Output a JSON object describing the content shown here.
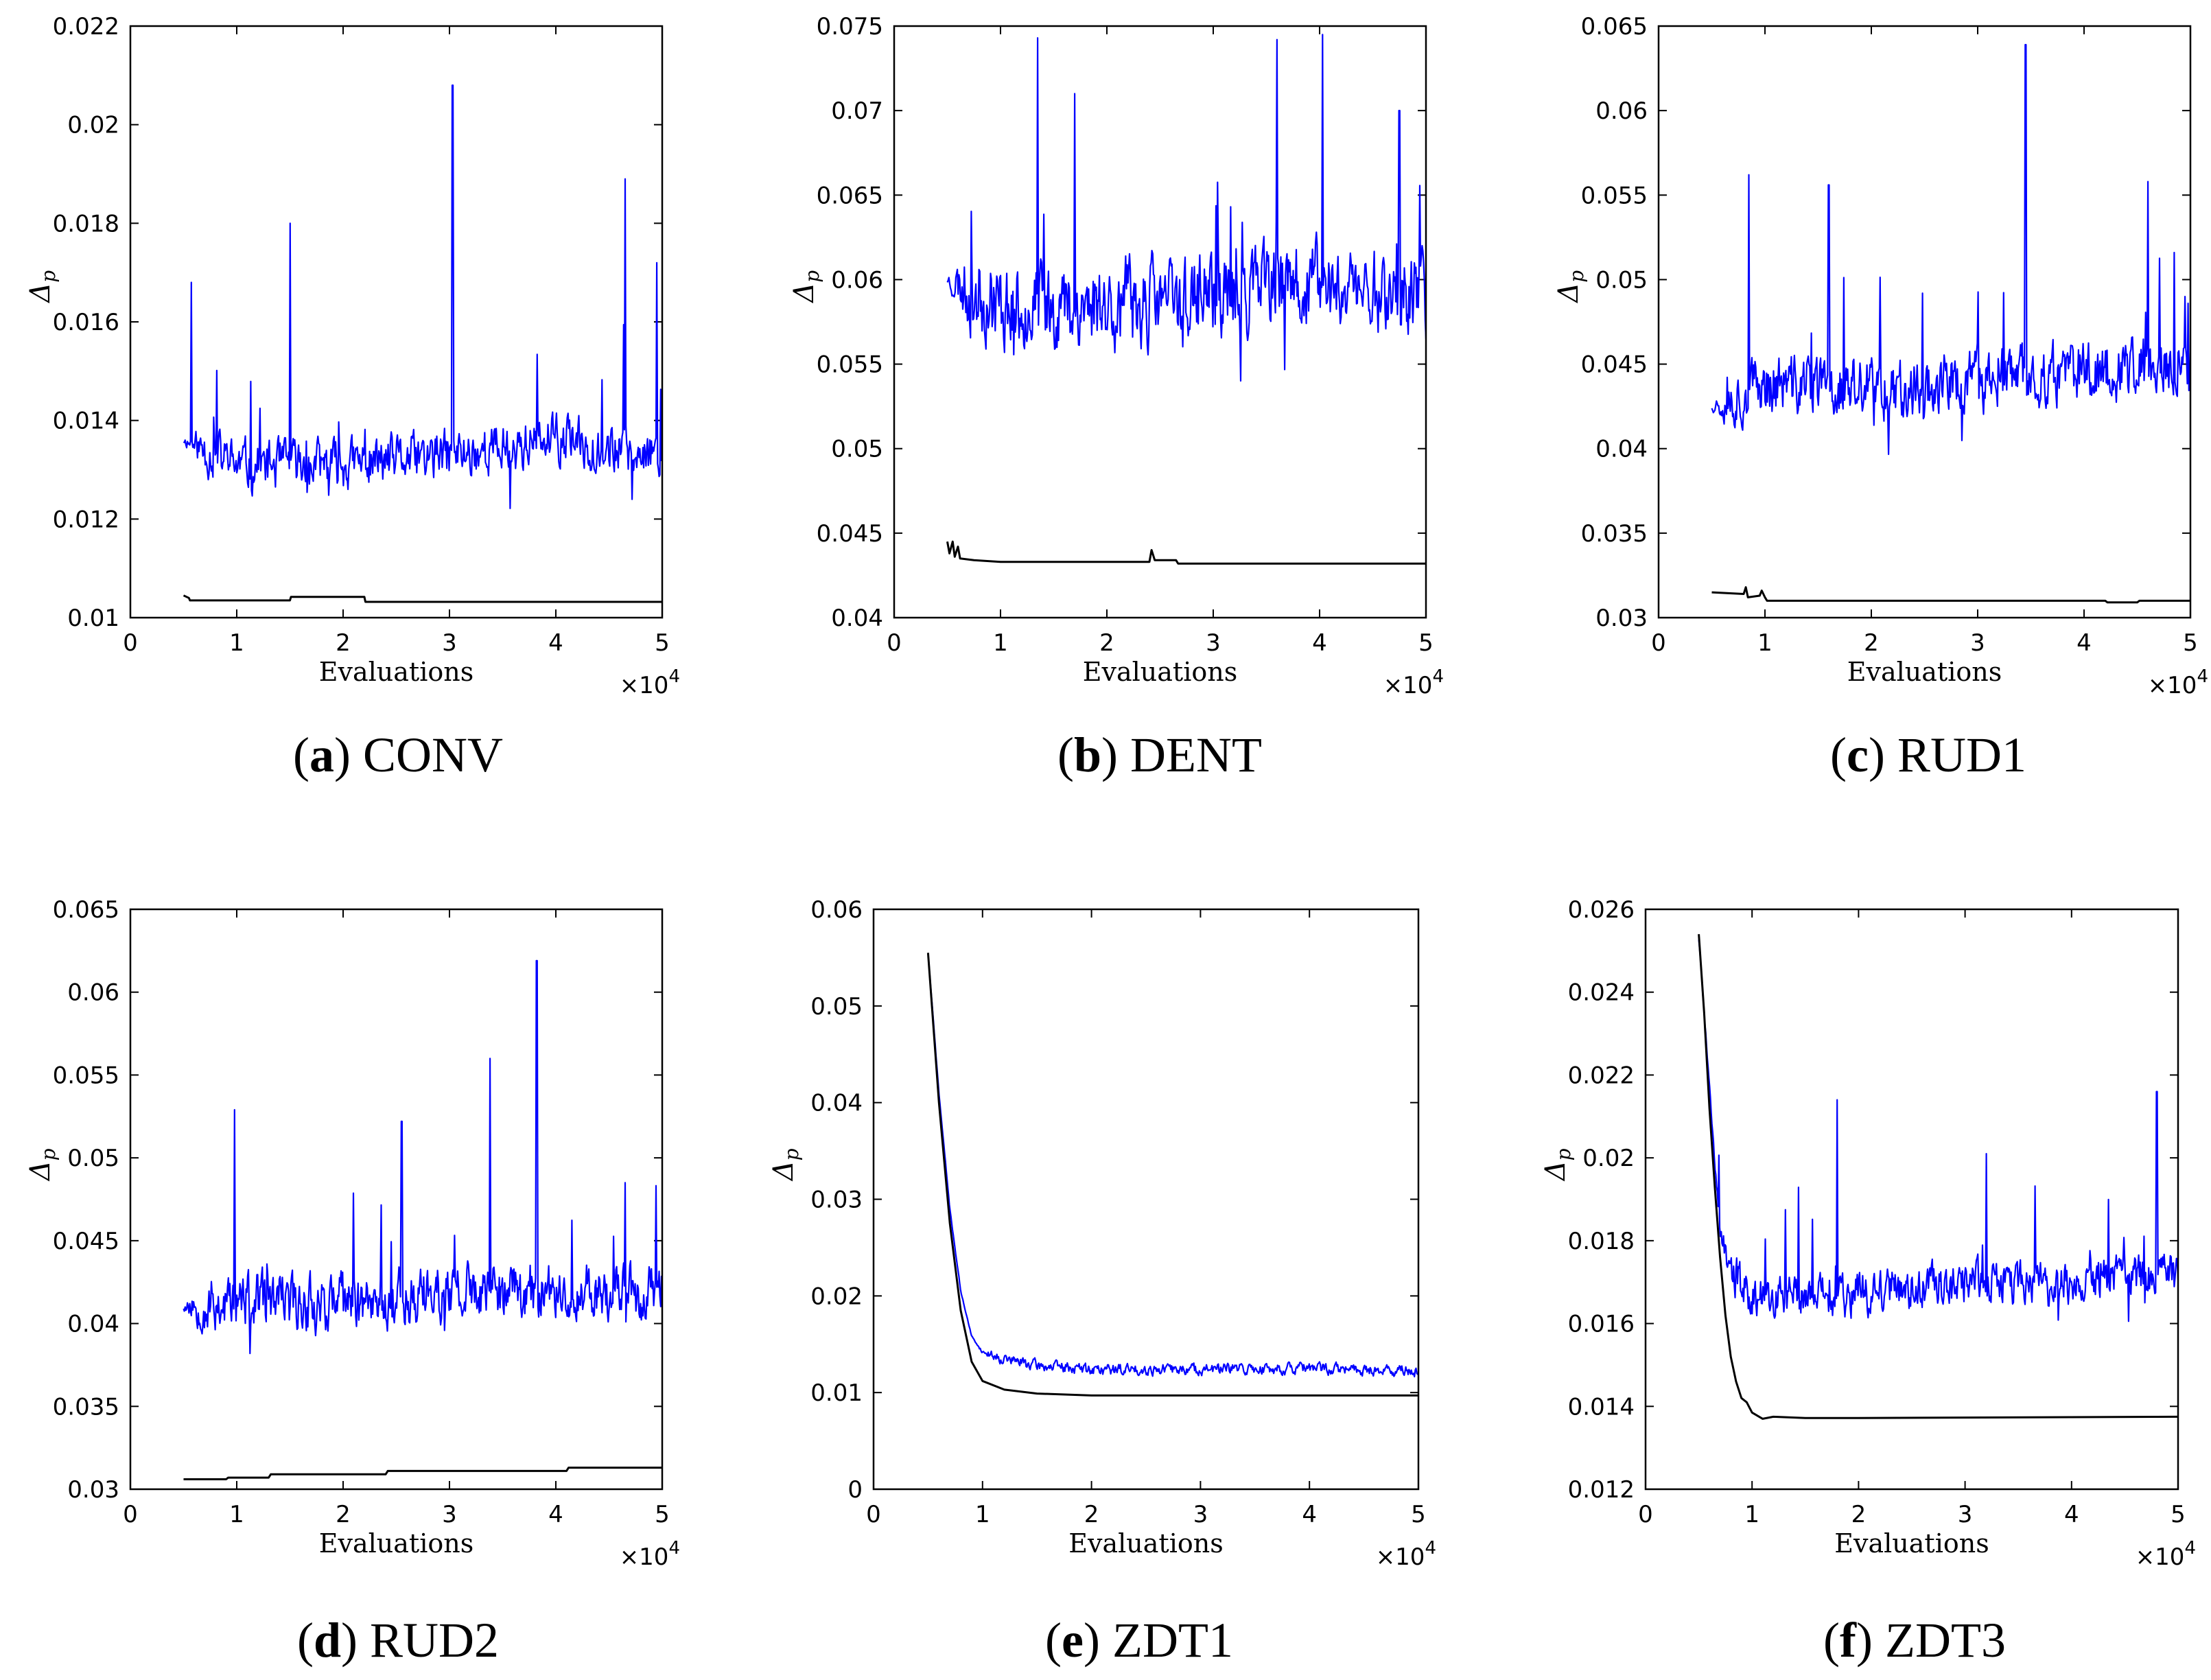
{
  "chart_data": [
    {
      "type": "line",
      "panel": "a",
      "caption_letter": "a",
      "caption_title": "CONV",
      "title": "",
      "xlabel": "Evaluations",
      "ylabel": "Δp",
      "x_multiplier_label": "×10^4",
      "xlim": [
        0,
        5
      ],
      "ylim": [
        0.01,
        0.022
      ],
      "xticks": [
        "0",
        "1",
        "2",
        "3",
        "4",
        "5"
      ],
      "yticks": [
        "0.01",
        "0.012",
        "0.014",
        "0.016",
        "0.018",
        "0.02",
        "0.022"
      ],
      "series": [
        {
          "name": "blue",
          "color": "#0000ff",
          "noisy": true,
          "noise_amp": 0.00075,
          "spike_prob": 0.035,
          "spike_amp": 0.0022,
          "seed": 11,
          "points": [
            [
              0.5,
              0.0136
            ],
            [
              1,
              0.0131
            ],
            [
              2,
              0.0131
            ],
            [
              3,
              0.0133
            ],
            [
              4,
              0.0136
            ],
            [
              5,
              0.0133
            ]
          ],
          "peaks": [
            [
              0.57,
              0.0168
            ],
            [
              1.5,
              0.018
            ],
            [
              3.03,
              0.0208
            ],
            [
              4.65,
              0.0189
            ],
            [
              4.95,
              0.0172
            ]
          ]
        },
        {
          "name": "black",
          "color": "#000000",
          "noisy": false,
          "points": [
            [
              0.5,
              0.01045
            ],
            [
              0.55,
              0.0104
            ],
            [
              0.56,
              0.01035
            ],
            [
              1.5,
              0.01035
            ],
            [
              1.51,
              0.01042
            ],
            [
              2.2,
              0.01042
            ],
            [
              2.21,
              0.01032
            ],
            [
              5,
              0.01032
            ]
          ]
        }
      ]
    },
    {
      "type": "line",
      "panel": "b",
      "caption_letter": "b",
      "caption_title": "DENT",
      "title": "",
      "xlabel": "Evaluations",
      "ylabel": "Δp",
      "x_multiplier_label": "×10^4",
      "xlim": [
        0,
        5
      ],
      "ylim": [
        0.04,
        0.075
      ],
      "xticks": [
        "0",
        "1",
        "2",
        "3",
        "4",
        "5"
      ],
      "yticks": [
        "0.04",
        "0.045",
        "0.05",
        "0.055",
        "0.06",
        "0.065",
        "0.07",
        "0.075"
      ],
      "series": [
        {
          "name": "blue",
          "color": "#0000ff",
          "noisy": true,
          "noise_amp": 0.0038,
          "spike_prob": 0.03,
          "spike_amp": 0.008,
          "seed": 23,
          "points": [
            [
              0.5,
              0.06
            ],
            [
              1,
              0.0585
            ],
            [
              2,
              0.0585
            ],
            [
              3,
              0.059
            ],
            [
              4,
              0.0598
            ],
            [
              5,
              0.059
            ]
          ],
          "peaks": [
            [
              1.35,
              0.0743
            ],
            [
              1.7,
              0.071
            ],
            [
              3.6,
              0.0742
            ],
            [
              4.03,
              0.0745
            ],
            [
              4.75,
              0.07
            ]
          ]
        },
        {
          "name": "black",
          "color": "#000000",
          "noisy": false,
          "points": [
            [
              0.5,
              0.0445
            ],
            [
              0.52,
              0.0438
            ],
            [
              0.55,
              0.0445
            ],
            [
              0.57,
              0.0436
            ],
            [
              0.6,
              0.0442
            ],
            [
              0.62,
              0.0435
            ],
            [
              0.75,
              0.0434
            ],
            [
              1,
              0.0433
            ],
            [
              2.4,
              0.0433
            ],
            [
              2.42,
              0.044
            ],
            [
              2.45,
              0.0434
            ],
            [
              2.65,
              0.0434
            ],
            [
              2.67,
              0.0432
            ],
            [
              5,
              0.0432
            ]
          ]
        }
      ]
    },
    {
      "type": "line",
      "panel": "c",
      "caption_letter": "c",
      "caption_title": "RUD1",
      "title": "",
      "xlabel": "Evaluations",
      "ylabel": "Δp",
      "x_multiplier_label": "×10^4",
      "xlim": [
        0,
        5
      ],
      "ylim": [
        0.03,
        0.065
      ],
      "xticks": [
        "0",
        "1",
        "2",
        "3",
        "4",
        "5"
      ],
      "yticks": [
        "0.03",
        "0.035",
        "0.04",
        "0.045",
        "0.05",
        "0.055",
        "0.06",
        "0.065"
      ],
      "series": [
        {
          "name": "blue",
          "color": "#0000ff",
          "noisy": true,
          "noise_amp": 0.0027,
          "spike_prob": 0.03,
          "spike_amp": 0.007,
          "seed": 37,
          "points": [
            [
              0.5,
              0.0425
            ],
            [
              1,
              0.0438
            ],
            [
              2,
              0.0435
            ],
            [
              3,
              0.044
            ],
            [
              4,
              0.0445
            ],
            [
              5,
              0.0448
            ]
          ],
          "peaks": [
            [
              0.85,
              0.0562
            ],
            [
              1.6,
              0.0556
            ],
            [
              3.45,
              0.0639
            ],
            [
              4.6,
              0.0558
            ],
            [
              4.95,
              0.049
            ]
          ]
        },
        {
          "name": "black",
          "color": "#000000",
          "noisy": false,
          "points": [
            [
              0.5,
              0.0315
            ],
            [
              0.8,
              0.0314
            ],
            [
              0.82,
              0.0318
            ],
            [
              0.84,
              0.0312
            ],
            [
              0.95,
              0.0313
            ],
            [
              0.97,
              0.0316
            ],
            [
              1.0,
              0.0312
            ],
            [
              1.02,
              0.031
            ],
            [
              4.2,
              0.031
            ],
            [
              4.22,
              0.0309
            ],
            [
              4.5,
              0.0309
            ],
            [
              4.52,
              0.031
            ],
            [
              5,
              0.031
            ]
          ]
        }
      ]
    },
    {
      "type": "line",
      "panel": "d",
      "caption_letter": "d",
      "caption_title": "RUD2",
      "title": "",
      "xlabel": "Evaluations",
      "ylabel": "Δp",
      "x_multiplier_label": "×10^4",
      "xlim": [
        0,
        5
      ],
      "ylim": [
        0.03,
        0.065
      ],
      "xticks": [
        "0",
        "1",
        "2",
        "3",
        "4",
        "5"
      ],
      "yticks": [
        "0.03",
        "0.035",
        "0.04",
        "0.045",
        "0.05",
        "0.055",
        "0.06",
        "0.065"
      ],
      "series": [
        {
          "name": "blue",
          "color": "#0000ff",
          "noisy": true,
          "noise_amp": 0.0026,
          "spike_prob": 0.03,
          "spike_amp": 0.006,
          "seed": 53,
          "points": [
            [
              0.5,
              0.041
            ],
            [
              1,
              0.0413
            ],
            [
              2,
              0.0413
            ],
            [
              3,
              0.0418
            ],
            [
              4,
              0.042
            ],
            [
              5,
              0.0418
            ]
          ],
          "peaks": [
            [
              0.98,
              0.0529
            ],
            [
              2.55,
              0.0522
            ],
            [
              3.38,
              0.056
            ],
            [
              3.82,
              0.0619
            ],
            [
              4.65,
              0.0485
            ]
          ]
        },
        {
          "name": "black",
          "color": "#000000",
          "noisy": false,
          "points": [
            [
              0.5,
              0.0306
            ],
            [
              0.9,
              0.0306
            ],
            [
              0.92,
              0.0307
            ],
            [
              1.3,
              0.0307
            ],
            [
              1.32,
              0.0309
            ],
            [
              2.4,
              0.0309
            ],
            [
              2.42,
              0.0311
            ],
            [
              4.1,
              0.0311
            ],
            [
              4.12,
              0.0313
            ],
            [
              5,
              0.0313
            ]
          ]
        }
      ]
    },
    {
      "type": "line",
      "panel": "e",
      "caption_letter": "e",
      "caption_title": "ZDT1",
      "title": "",
      "xlabel": "Evaluations",
      "ylabel": "Δp",
      "x_multiplier_label": "×10^4",
      "xlim": [
        0,
        5
      ],
      "ylim": [
        0,
        0.06
      ],
      "xticks": [
        "0",
        "1",
        "2",
        "3",
        "4",
        "5"
      ],
      "yticks": [
        "0",
        "0.01",
        "0.02",
        "0.03",
        "0.04",
        "0.05",
        "0.06"
      ],
      "series": [
        {
          "name": "blue",
          "color": "#0000ff",
          "noisy": true,
          "noise_amp": 0.0009,
          "spike_prob": 0.0,
          "spike_amp": 0,
          "seed": 71,
          "noise_start": 0.95,
          "points": [
            [
              0.5,
              0.0555
            ],
            [
              0.6,
              0.041
            ],
            [
              0.7,
              0.029
            ],
            [
              0.8,
              0.0205
            ],
            [
              0.9,
              0.0158
            ],
            [
              1.0,
              0.0142
            ],
            [
              1.2,
              0.0135
            ],
            [
              1.5,
              0.0128
            ],
            [
              2,
              0.0124
            ],
            [
              3,
              0.0124
            ],
            [
              4,
              0.0125
            ],
            [
              5,
              0.0122
            ]
          ]
        },
        {
          "name": "black",
          "color": "#000000",
          "noisy": false,
          "points": [
            [
              0.5,
              0.0555
            ],
            [
              0.6,
              0.04
            ],
            [
              0.7,
              0.0275
            ],
            [
              0.8,
              0.0185
            ],
            [
              0.9,
              0.0132
            ],
            [
              1.0,
              0.0112
            ],
            [
              1.2,
              0.0103
            ],
            [
              1.5,
              0.0099
            ],
            [
              2,
              0.0097
            ],
            [
              5,
              0.0097
            ]
          ]
        }
      ]
    },
    {
      "type": "line",
      "panel": "f",
      "caption_letter": "f",
      "caption_title": "ZDT3",
      "title": "",
      "xlabel": "Evaluations",
      "ylabel": "Δp",
      "x_multiplier_label": "×10^4",
      "xlim": [
        0,
        5
      ],
      "ylim": [
        0.012,
        0.026
      ],
      "xticks": [
        "0",
        "1",
        "2",
        "3",
        "4",
        "5"
      ],
      "yticks": [
        "0.012",
        "0.014",
        "0.016",
        "0.018",
        "0.02",
        "0.022",
        "0.024",
        "0.026"
      ],
      "series": [
        {
          "name": "blue",
          "color": "#0000ff",
          "noisy": true,
          "noise_amp": 0.0008,
          "spike_prob": 0.03,
          "spike_amp": 0.0025,
          "seed": 89,
          "noise_start": 0.62,
          "points": [
            [
              0.5,
              0.0253
            ],
            [
              0.55,
              0.0235
            ],
            [
              0.6,
              0.0218
            ],
            [
              0.65,
              0.0198
            ],
            [
              0.7,
              0.0183
            ],
            [
              0.8,
              0.0172
            ],
            [
              1.0,
              0.0167
            ],
            [
              2,
              0.0167
            ],
            [
              3,
              0.017
            ],
            [
              4,
              0.017
            ],
            [
              5,
              0.0172
            ]
          ],
          "peaks": [
            [
              1.8,
              0.0214
            ],
            [
              4.8,
              0.0216
            ],
            [
              3.2,
              0.0201
            ]
          ]
        },
        {
          "name": "black",
          "color": "#000000",
          "noisy": false,
          "points": [
            [
              0.5,
              0.0254
            ],
            [
              0.55,
              0.0235
            ],
            [
              0.6,
              0.0212
            ],
            [
              0.65,
              0.0193
            ],
            [
              0.7,
              0.0176
            ],
            [
              0.75,
              0.0162
            ],
            [
              0.8,
              0.0152
            ],
            [
              0.85,
              0.0146
            ],
            [
              0.9,
              0.0142
            ],
            [
              0.95,
              0.0141
            ],
            [
              1.0,
              0.01385
            ],
            [
              1.1,
              0.0137
            ],
            [
              1.2,
              0.01375
            ],
            [
              1.5,
              0.01372
            ],
            [
              2,
              0.01372
            ],
            [
              5,
              0.01375
            ]
          ]
        }
      ]
    }
  ]
}
